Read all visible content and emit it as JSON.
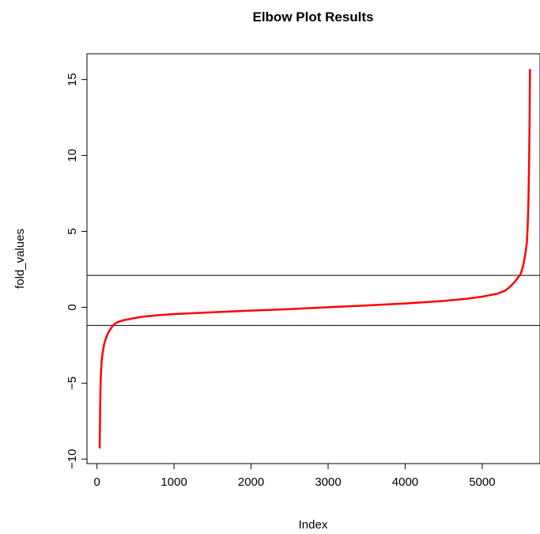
{
  "chart_data": {
    "type": "line",
    "title": "Elbow Plot Results",
    "xlabel": "Index",
    "ylabel": "fold_values",
    "xlim": [
      -130,
      5750
    ],
    "ylim": [
      -10.3,
      16.7
    ],
    "x_ticks": [
      0,
      1000,
      2000,
      3000,
      4000,
      5000
    ],
    "y_ticks": [
      -10,
      -5,
      0,
      5,
      10,
      15
    ],
    "x_tick_labels": [
      "0",
      "1000",
      "2000",
      "3000",
      "4000",
      "5000"
    ],
    "y_tick_labels": [
      "−10",
      "−5",
      "0",
      "5",
      "10",
      "15"
    ],
    "grid": false,
    "legend": "none",
    "series": [
      {
        "color": "#ff0000",
        "x": [
          35,
          40,
          45,
          50,
          55,
          60,
          70,
          80,
          90,
          100,
          120,
          140,
          160,
          180,
          200,
          230,
          260,
          300,
          350,
          400,
          500,
          600,
          800,
          1000,
          1500,
          2000,
          2500,
          3000,
          3500,
          4000,
          4500,
          4800,
          5000,
          5100,
          5200,
          5300,
          5350,
          5400,
          5450,
          5500,
          5530,
          5560,
          5580,
          5590,
          5600,
          5610,
          5615,
          5620
        ],
        "y": [
          -9.3,
          -7.2,
          -5.5,
          -4.5,
          -4.0,
          -3.6,
          -3.1,
          -2.8,
          -2.5,
          -2.3,
          -2.0,
          -1.75,
          -1.55,
          -1.4,
          -1.25,
          -1.1,
          -1.0,
          -0.92,
          -0.85,
          -0.8,
          -0.7,
          -0.62,
          -0.52,
          -0.45,
          -0.33,
          -0.22,
          -0.12,
          0.0,
          0.12,
          0.25,
          0.42,
          0.56,
          0.7,
          0.8,
          0.9,
          1.1,
          1.3,
          1.55,
          1.85,
          2.2,
          2.7,
          3.5,
          4.3,
          5.3,
          7.0,
          10.0,
          12.5,
          15.7
        ]
      }
    ],
    "hlines": [
      2.1,
      -1.2
    ],
    "hline_color": "#000000"
  }
}
